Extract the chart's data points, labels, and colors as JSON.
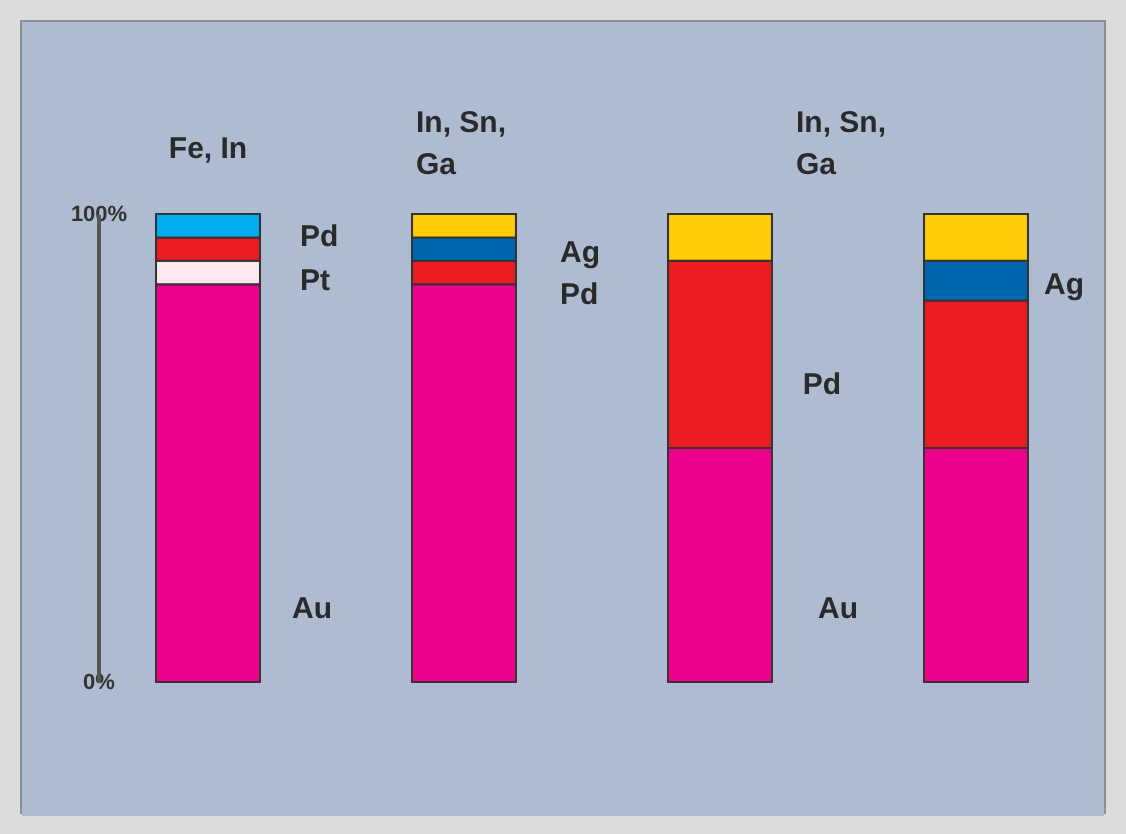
{
  "chart_data": {
    "type": "bar",
    "stacked": true,
    "categories": [
      null,
      null,
      null,
      null
    ],
    "ylim": [
      0,
      100
    ],
    "yticks": [
      {
        "value": 0,
        "label": "0%"
      },
      {
        "value": 100,
        "label": "100%"
      }
    ],
    "grid": false,
    "legend": false,
    "series": [
      {
        "color": "#ec008c",
        "values": [
          85,
          85,
          50,
          50
        ]
      },
      {
        "color": "#fde8ef",
        "values": [
          5,
          null,
          null,
          null
        ]
      },
      {
        "color": "#ed1c24",
        "values": [
          5,
          5,
          40,
          31.5
        ]
      },
      {
        "color": "#0067b1",
        "values": [
          null,
          5,
          null,
          8.5
        ]
      },
      {
        "color": "#00aeef",
        "values": [
          5,
          null,
          null,
          null
        ]
      },
      {
        "color": "#ffcc05",
        "values": [
          null,
          5,
          10,
          10
        ]
      }
    ],
    "annotations": [
      "Fe, In",
      "In, Sn,\nGa",
      "Pd",
      "Pt",
      "Au",
      "Ag",
      "Pd",
      "In, Sn,\nGa",
      "Pd",
      "Au",
      "Ag"
    ]
  }
}
